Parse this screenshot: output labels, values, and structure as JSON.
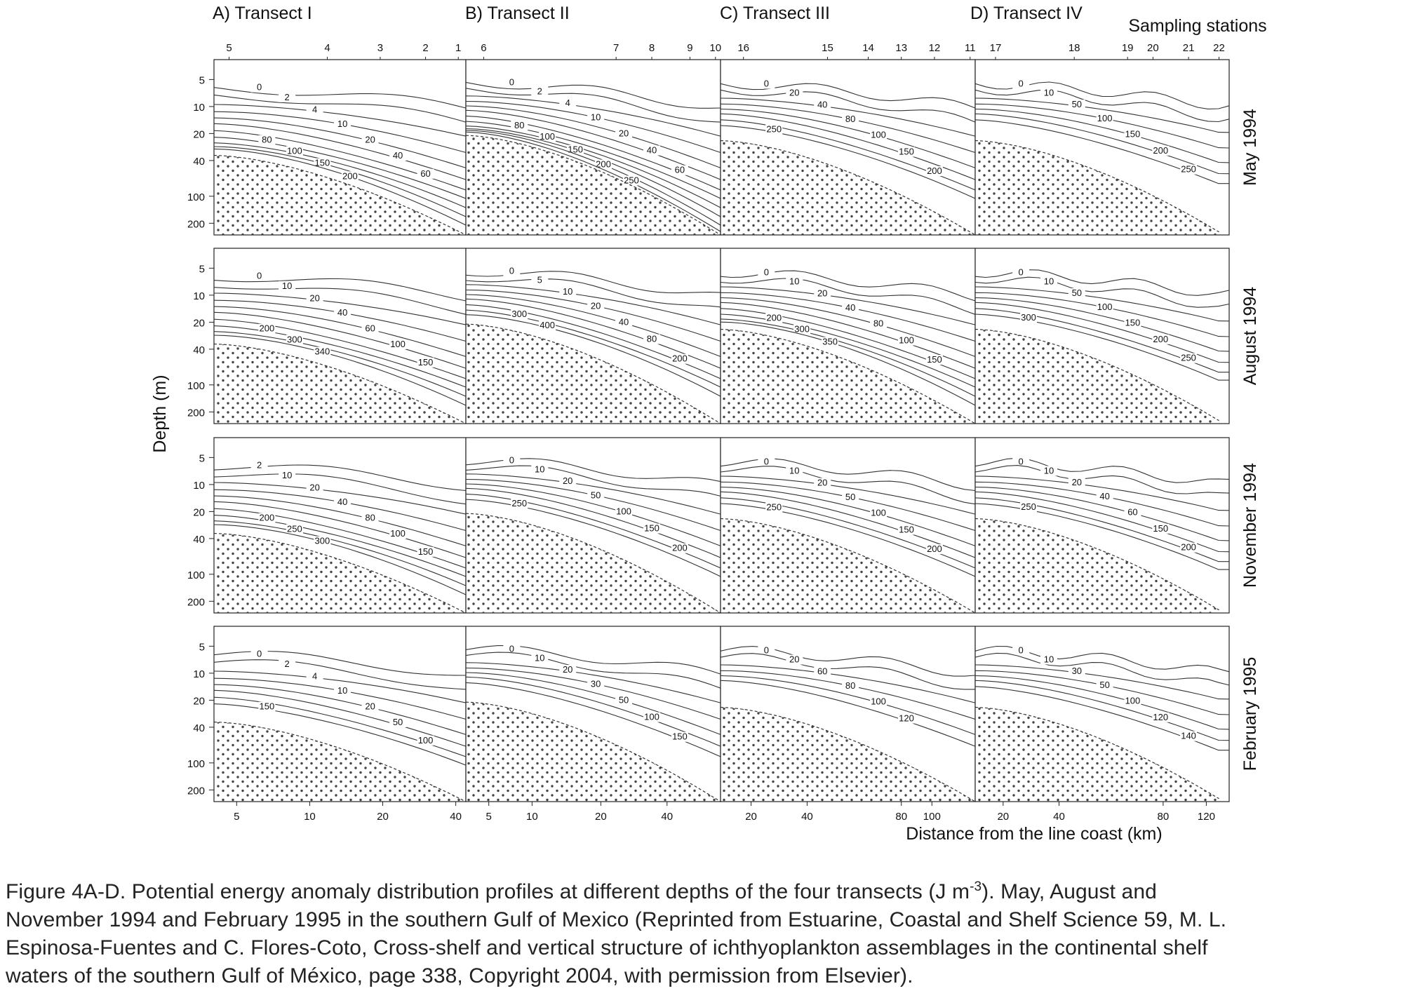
{
  "chart_data": {
    "type": "contour",
    "title": "Potential energy anomaly distribution profiles (J m-3)",
    "ylabel": "Depth (m)",
    "xlabel": "Distance from the line coast (km)",
    "top_axis_label": "Sampling stations",
    "y_ticks": [
      "5",
      "10",
      "20",
      "40",
      "100",
      "200"
    ],
    "ylim_m": [
      3,
      270
    ],
    "transects": [
      {
        "label": "A)",
        "name": "Transect I",
        "stations": [
          "5",
          "4",
          "3",
          "2",
          "1"
        ],
        "distance_ticks": [
          "5",
          "10",
          "20",
          "40"
        ],
        "shelf_depth_m": [
          35,
          300
        ]
      },
      {
        "label": "B)",
        "name": "Transect II",
        "stations": [
          "6",
          "7",
          "8",
          "9",
          "10"
        ],
        "distance_ticks": [
          "5",
          "10",
          "20",
          "40"
        ],
        "shelf_depth_m": [
          21,
          300
        ]
      },
      {
        "label": "C)",
        "name": "Transect III",
        "stations": [
          "16",
          "15",
          "14",
          "13",
          "12",
          "11"
        ],
        "distance_ticks": [
          "20",
          "40",
          "80",
          "100"
        ],
        "shelf_depth_m": [
          24,
          300
        ]
      },
      {
        "label": "D)",
        "name": "Transect IV",
        "stations": [
          "17",
          "18",
          "19",
          "20",
          "21",
          "22"
        ],
        "distance_ticks": [
          "20",
          "40",
          "80",
          "120"
        ],
        "shelf_depth_m": [
          24,
          250
        ]
      }
    ],
    "periods": [
      {
        "name": "May 1994",
        "levels": [
          [
            "0",
            "2",
            "4",
            "10",
            "20",
            "40",
            "60",
            "80",
            "100",
            "150",
            "200"
          ],
          [
            "0",
            "2",
            "4",
            "10",
            "20",
            "40",
            "60",
            "80",
            "100",
            "150",
            "200",
            "250"
          ],
          [
            "0",
            "20",
            "40",
            "80",
            "100",
            "150",
            "200",
            "250"
          ],
          [
            "0",
            "10",
            "50",
            "100",
            "150",
            "200",
            "250"
          ]
        ]
      },
      {
        "name": "August 1994",
        "levels": [
          [
            "0",
            "10",
            "20",
            "40",
            "60",
            "100",
            "150",
            "200",
            "300",
            "340"
          ],
          [
            "0",
            "5",
            "10",
            "20",
            "40",
            "80",
            "200",
            "300",
            "400"
          ],
          [
            "0",
            "10",
            "20",
            "40",
            "80",
            "100",
            "150",
            "200",
            "300",
            "350"
          ],
          [
            "0",
            "10",
            "50",
            "100",
            "150",
            "200",
            "250",
            "300"
          ]
        ]
      },
      {
        "name": "November 1994",
        "levels": [
          [
            "2",
            "10",
            "20",
            "40",
            "80",
            "100",
            "150",
            "200",
            "250",
            "300"
          ],
          [
            "0",
            "10",
            "20",
            "50",
            "100",
            "150",
            "200",
            "250"
          ],
          [
            "0",
            "10",
            "20",
            "50",
            "100",
            "150",
            "200",
            "250"
          ],
          [
            "0",
            "10",
            "20",
            "40",
            "60",
            "150",
            "200",
            "250"
          ]
        ]
      },
      {
        "name": "February 1995",
        "levels": [
          [
            "0",
            "2",
            "4",
            "10",
            "20",
            "50",
            "100",
            "150"
          ],
          [
            "0",
            "10",
            "20",
            "30",
            "50",
            "100",
            "150"
          ],
          [
            "0",
            "20",
            "60",
            "80",
            "100",
            "120"
          ],
          [
            "0",
            "10",
            "30",
            "50",
            "100",
            "120",
            "140"
          ]
        ]
      }
    ]
  },
  "caption": {
    "line1_pre": "Figure 4A-D. Potential energy anomaly distribution profiles  at different depths of the four transects (J m",
    "line1_sup": "-3",
    "line1_post": "). May, August and",
    "line2": "November 1994 and February 1995 in the southern Gulf of Mexico (Reprinted from Estuarine, Coastal and Shelf Science 59, M. L.",
    "line3": "Espinosa-Fuentes and C. Flores-Coto, Cross-shelf and vertical structure of ichthyoplankton assemblages in the continental shelf",
    "line4": "waters of the southern Gulf of México, page 338, Copyright 2004, with permission from Elsevier)."
  }
}
